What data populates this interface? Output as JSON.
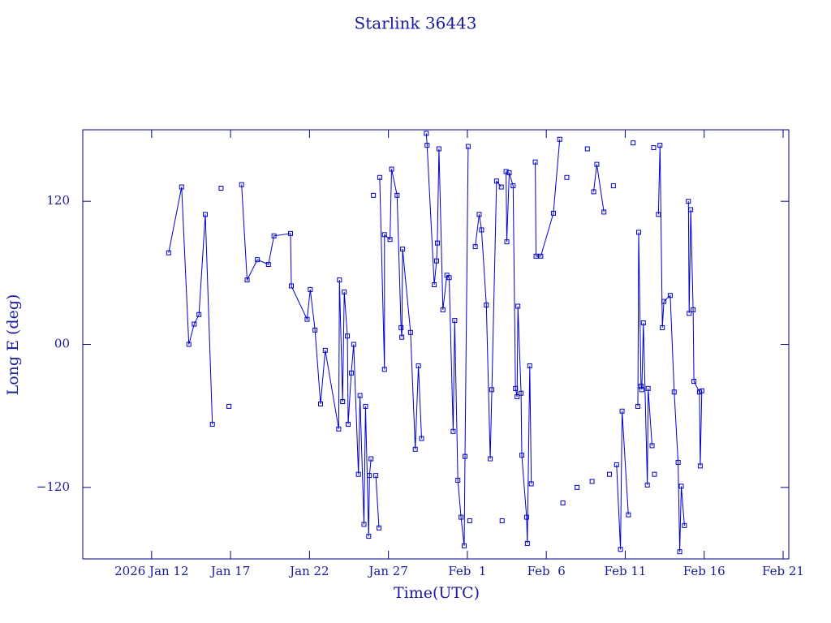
{
  "chart_data": {
    "type": "line",
    "title": "Starlink 36443",
    "x_label": "Time(UTC)",
    "y_label": "Long E (deg)",
    "xlim": [
      7.64,
      52.36
    ],
    "ylim": [
      -180,
      180
    ],
    "xticks": [
      {
        "value": 12,
        "label": "2026 Jan 12"
      },
      {
        "value": 17,
        "label": "Jan 17"
      },
      {
        "value": 22,
        "label": "Jan 22"
      },
      {
        "value": 27,
        "label": "Jan 27"
      },
      {
        "value": 32,
        "label": "Feb  1"
      },
      {
        "value": 37,
        "label": "Feb  6"
      },
      {
        "value": 42,
        "label": "Feb 11"
      },
      {
        "value": 47,
        "label": "Feb 16"
      },
      {
        "value": 52,
        "label": "Feb 21"
      }
    ],
    "yticks": [
      {
        "value": -120,
        "label": "−120"
      },
      {
        "value": 0,
        "label": "00"
      },
      120
    ],
    "series": [
      {
        "name": "Long E",
        "color": "#0000c8",
        "x": [
          13.08,
          13.9,
          14.36,
          14.7,
          15.0,
          15.4,
          15.85,
          null,
          16.4,
          null,
          16.9,
          null,
          17.7,
          18.05,
          18.7,
          19.4,
          19.75,
          20.8,
          20.85,
          21.85,
          22.05,
          22.35,
          22.7,
          23.0,
          23.85,
          23.9,
          24.1,
          24.2,
          24.4,
          24.45,
          24.65,
          24.8,
          25.1,
          25.2,
          25.45,
          25.55,
          25.75,
          25.8,
          25.9,
          null,
          26.05,
          null,
          26.2,
          26.4,
          null,
          26.45,
          26.75,
          26.75,
          27.1,
          27.2,
          27.55,
          27.8,
          27.85,
          27.9,
          28.4,
          28.7,
          28.9,
          29.1,
          null,
          29.4,
          29.45,
          29.9,
          30.05,
          30.1,
          30.2,
          30.45,
          30.7,
          30.85,
          31.1,
          31.2,
          31.4,
          31.6,
          31.8,
          31.85,
          32.05,
          null,
          32.15,
          null,
          32.5,
          32.75,
          32.9,
          33.2,
          33.45,
          33.55,
          33.85,
          34.15,
          null,
          34.2,
          null,
          34.45,
          34.5,
          34.65,
          34.9,
          35.05,
          35.15,
          35.2,
          35.4,
          35.45,
          35.75,
          35.8,
          35.95,
          36.05,
          null,
          36.3,
          36.35,
          36.65,
          37.45,
          37.85,
          null,
          38.05,
          null,
          38.3,
          null,
          38.95,
          null,
          39.6,
          null,
          39.9,
          null,
          40.0,
          40.2,
          40.65,
          null,
          41.0,
          null,
          41.25,
          null,
          41.45,
          41.7,
          41.8,
          42.2,
          null,
          42.5,
          null,
          42.8,
          42.85,
          43.0,
          43.05,
          43.15,
          43.4,
          43.45,
          43.7,
          null,
          43.8,
          null,
          43.85,
          null,
          44.1,
          44.2,
          44.35,
          44.45,
          44.85,
          45.1,
          45.35,
          45.45,
          45.55,
          45.75,
          null,
          46.0,
          46.05,
          46.15,
          46.3,
          46.35,
          46.7,
          46.75,
          46.85
        ],
        "values": [
          76.8,
          132,
          0,
          17,
          25,
          109,
          -67,
          null,
          131,
          null,
          -52,
          null,
          134,
          54,
          71,
          67,
          91,
          93,
          49,
          21,
          46,
          12,
          -50,
          -5,
          -71,
          54,
          -48,
          44,
          7,
          -67,
          -24,
          0,
          -109,
          -43,
          -151,
          -52,
          -161,
          -110,
          -96,
          null,
          125,
          null,
          -110,
          -154,
          null,
          140,
          -21,
          92,
          88,
          147,
          125,
          14,
          6,
          80,
          10,
          -88,
          -18,
          -79,
          null,
          177,
          167,
          50,
          70,
          85,
          164,
          29,
          58,
          56,
          -73,
          20,
          -114,
          -145,
          -169,
          -94,
          166,
          null,
          -148,
          null,
          82,
          109,
          96,
          33,
          -96,
          -38,
          137,
          132,
          null,
          -148,
          null,
          145,
          86,
          144,
          133,
          -37,
          -44,
          32,
          -41,
          -93,
          -145,
          -167,
          -18,
          -117,
          null,
          153,
          74,
          74,
          110,
          172,
          null,
          -133,
          null,
          140,
          null,
          -120,
          null,
          164,
          null,
          -115,
          null,
          128,
          151,
          111,
          null,
          -109,
          null,
          133,
          null,
          -101,
          -172,
          -56,
          -143,
          null,
          169,
          null,
          -52,
          94,
          -35,
          -38,
          18,
          -118,
          -37,
          -85,
          null,
          165,
          null,
          -109,
          null,
          109,
          167,
          14,
          36,
          41,
          -40,
          -99,
          -174,
          -119,
          -152,
          null,
          120,
          26,
          113,
          29,
          -31,
          -40,
          -102,
          -39
        ]
      }
    ]
  }
}
